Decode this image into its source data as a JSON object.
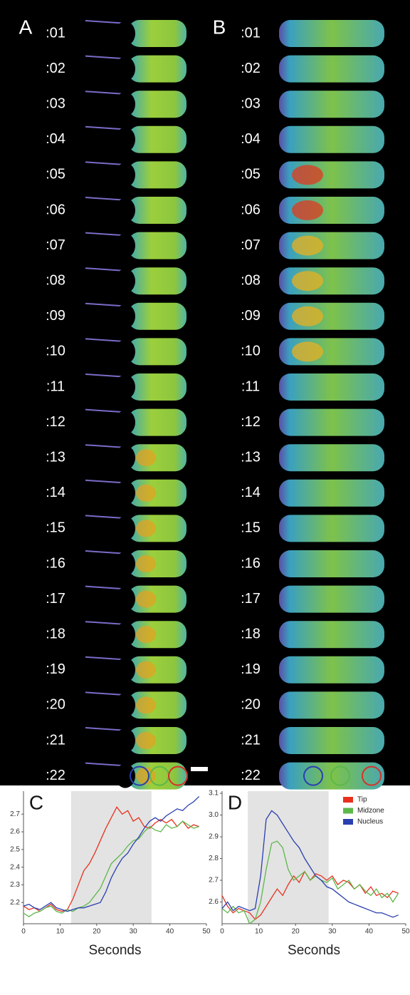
{
  "image_panels": [
    {
      "label": "A",
      "times": [
        ":01",
        ":02",
        ":03",
        ":04",
        ":05",
        ":06",
        ":07",
        ":08",
        ":09",
        ":10",
        ":11",
        ":12",
        ":13",
        ":14",
        ":15",
        ":16",
        ":17",
        ":18",
        ":19",
        ":20",
        ":21",
        ":22"
      ]
    },
    {
      "label": "B",
      "times": [
        ":01",
        ":02",
        ":03",
        ":04",
        ":05",
        ":06",
        ":07",
        ":08",
        ":09",
        ":10",
        ":11",
        ":12",
        ":13",
        ":14",
        ":15",
        ":16",
        ":17",
        ":18",
        ":19",
        ":20",
        ":21",
        ":22"
      ]
    }
  ],
  "chart_data": [
    {
      "type": "line",
      "panel_label": "C",
      "x_label": "Seconds",
      "xlim": [
        0,
        50
      ],
      "xticks": [
        0,
        10,
        20,
        30,
        40,
        50
      ],
      "ylim": [
        2.08,
        2.83
      ],
      "yticks": [
        2.2,
        2.3,
        2.4,
        2.5,
        2.6,
        2.7
      ],
      "highlight_x": [
        13,
        35
      ],
      "legend": false,
      "x": [
        0,
        1.5,
        3,
        4.5,
        6,
        7.5,
        9,
        10.5,
        12,
        13.5,
        15,
        16.5,
        18,
        19.5,
        21,
        22.5,
        24,
        25.5,
        27,
        28.5,
        30,
        31.5,
        33,
        34.5,
        36,
        37.5,
        39,
        40.5,
        42,
        43.5,
        45,
        46.5,
        48
      ],
      "series": [
        {
          "name": "Tip",
          "color": "#e8311f",
          "values": [
            2.18,
            2.16,
            2.17,
            2.15,
            2.17,
            2.19,
            2.16,
            2.15,
            2.16,
            2.22,
            2.3,
            2.38,
            2.42,
            2.48,
            2.55,
            2.62,
            2.68,
            2.74,
            2.7,
            2.72,
            2.66,
            2.68,
            2.63,
            2.62,
            2.65,
            2.67,
            2.65,
            2.67,
            2.63,
            2.66,
            2.62,
            2.64,
            2.63
          ]
        },
        {
          "name": "Midzone",
          "color": "#5cb84a",
          "values": [
            2.14,
            2.12,
            2.14,
            2.15,
            2.17,
            2.18,
            2.15,
            2.14,
            2.16,
            2.15,
            2.17,
            2.18,
            2.2,
            2.24,
            2.28,
            2.35,
            2.42,
            2.45,
            2.48,
            2.52,
            2.55,
            2.56,
            2.6,
            2.63,
            2.61,
            2.6,
            2.64,
            2.62,
            2.63,
            2.66,
            2.64,
            2.62,
            2.63
          ]
        },
        {
          "name": "Nucleus",
          "color": "#2a3fb0",
          "values": [
            2.18,
            2.19,
            2.17,
            2.16,
            2.18,
            2.2,
            2.17,
            2.16,
            2.15,
            2.16,
            2.17,
            2.17,
            2.18,
            2.19,
            2.2,
            2.26,
            2.34,
            2.4,
            2.45,
            2.48,
            2.53,
            2.57,
            2.62,
            2.66,
            2.68,
            2.66,
            2.69,
            2.71,
            2.73,
            2.72,
            2.75,
            2.77,
            2.8
          ]
        }
      ]
    },
    {
      "type": "line",
      "panel_label": "D",
      "x_label": "Seconds",
      "xlim": [
        0,
        50
      ],
      "xticks": [
        0,
        10,
        20,
        30,
        40,
        50
      ],
      "ylim": [
        2.5,
        3.11
      ],
      "yticks": [
        2.6,
        2.7,
        2.8,
        2.9,
        {
          "value": 3,
          "label": "3.0"
        },
        3.1
      ],
      "highlight_x": [
        7,
        29
      ],
      "legend": "upper-right",
      "x": [
        0,
        1.5,
        3,
        4.5,
        6,
        7.5,
        9,
        10.5,
        12,
        13.5,
        15,
        16.5,
        18,
        19.5,
        21,
        22.5,
        24,
        25.5,
        27,
        28.5,
        30,
        31.5,
        33,
        34.5,
        36,
        37.5,
        39,
        40.5,
        42,
        43.5,
        45,
        46.5,
        48
      ],
      "series": [
        {
          "name": "Tip",
          "color": "#e8311f",
          "values": [
            2.63,
            2.58,
            2.55,
            2.57,
            2.56,
            2.55,
            2.52,
            2.54,
            2.58,
            2.62,
            2.66,
            2.63,
            2.68,
            2.72,
            2.69,
            2.74,
            2.7,
            2.73,
            2.72,
            2.7,
            2.72,
            2.68,
            2.7,
            2.69,
            2.66,
            2.68,
            2.64,
            2.67,
            2.63,
            2.64,
            2.62,
            2.65,
            2.64
          ]
        },
        {
          "name": "Midzone",
          "color": "#5cb84a",
          "values": [
            2.57,
            2.55,
            2.58,
            2.55,
            2.56,
            2.5,
            2.52,
            2.6,
            2.75,
            2.87,
            2.88,
            2.85,
            2.75,
            2.7,
            2.72,
            2.74,
            2.7,
            2.72,
            2.7,
            2.69,
            2.71,
            2.66,
            2.68,
            2.7,
            2.66,
            2.68,
            2.65,
            2.63,
            2.66,
            2.62,
            2.64,
            2.6,
            2.64
          ]
        },
        {
          "name": "Nucleus",
          "color": "#2a3fb0",
          "values": [
            2.57,
            2.6,
            2.56,
            2.58,
            2.57,
            2.56,
            2.57,
            2.72,
            2.98,
            3.02,
            3.0,
            2.96,
            2.92,
            2.88,
            2.85,
            2.8,
            2.76,
            2.72,
            2.7,
            2.67,
            2.66,
            2.64,
            2.62,
            2.6,
            2.59,
            2.58,
            2.57,
            2.56,
            2.55,
            2.55,
            2.54,
            2.53,
            2.54
          ]
        }
      ]
    }
  ]
}
